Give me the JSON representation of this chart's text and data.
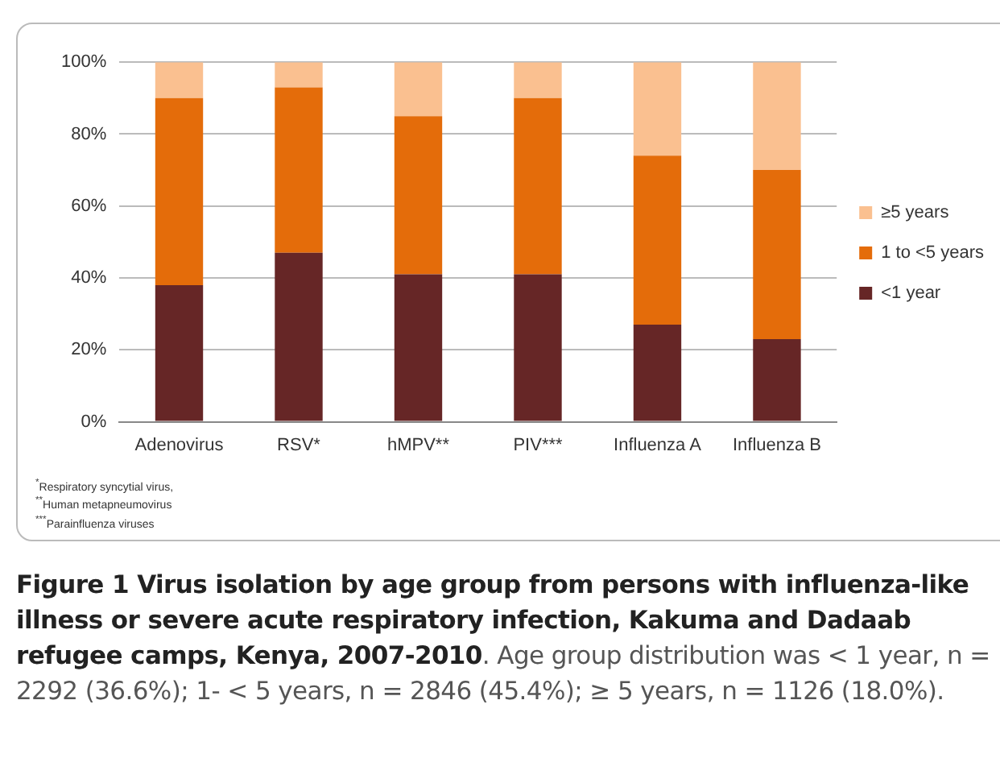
{
  "chart_data": {
    "type": "bar",
    "stacked": true,
    "title": "Figure 1 Virus isolation by age group from persons with influenza-like illness or severe acute respiratory infection, Kakuma and Dadaab refugee camps, Kenya, 2007-2010",
    "annotations": [
      ". Age group distribution was < 1 year, n = 2292 (36.6%); 1- < 5 years, n = 2846 (45.4%); ≥ 5 years, n = 1126 (18.0%).",
      "$^{*}$Respiratory syncytial virus,",
      "$^{**}$Human metapneumovirus",
      "$^{***}$Parainfluenza viruses"
    ],
    "categories": [
      "Adenovirus",
      "RSV*",
      "hMPV**",
      "PIV***",
      "Influenza A",
      "Influenza B"
    ],
    "series": [
      {
        "name": "<1 year",
        "color": "#662626",
        "values": [
          38,
          47,
          41,
          41,
          27,
          23
        ]
      },
      {
        "name": "1 to <5 years",
        "color": "#e46c0a",
        "values": [
          52,
          46,
          44,
          49,
          47,
          47
        ]
      },
      {
        "name": "≥5 years",
        "color": "#fac090",
        "values": [
          10,
          7,
          15,
          10,
          26,
          30
        ]
      }
    ],
    "ylim": [
      0,
      100
    ],
    "yticks": [
      {
        "value": 0,
        "label": "0%"
      },
      {
        "value": 20,
        "label": "20%"
      },
      {
        "value": 40,
        "label": "40%"
      },
      {
        "value": 60,
        "label": "60%"
      },
      {
        "value": 80,
        "label": "80%"
      },
      {
        "value": 100,
        "label": "100%"
      }
    ],
    "grid": "y",
    "legend": "right"
  }
}
